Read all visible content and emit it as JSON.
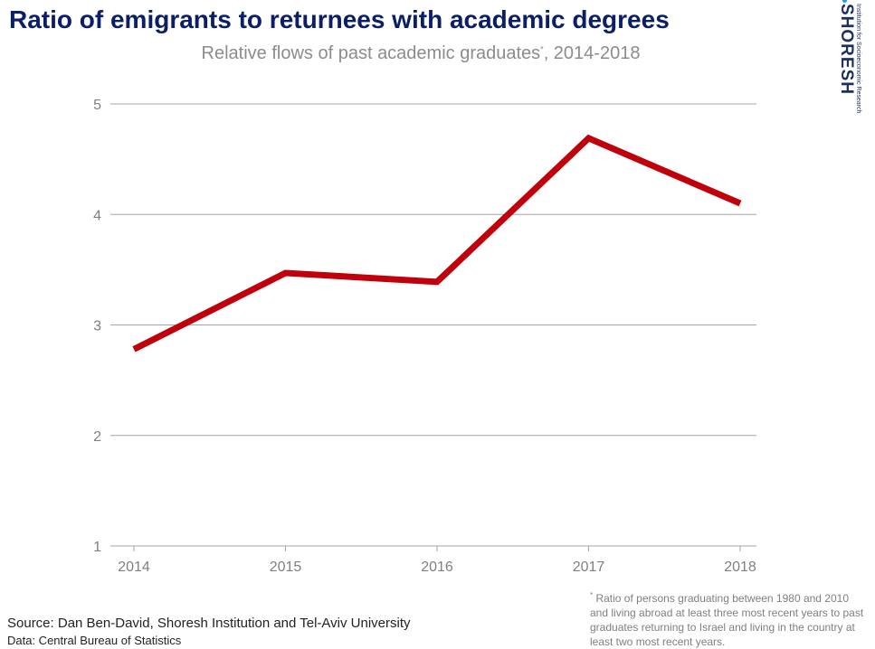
{
  "title": "Ratio of emigrants to returnees with academic degrees",
  "subtitle": "Relative flows of past academic graduates",
  "subtitle_marker": "*",
  "subtitle_period": ", 2014-2018",
  "logo": {
    "wordmark": "SHORESH",
    "tagline": "Institution for Socioeconomic Research"
  },
  "footnote": {
    "marker": "*",
    "text": " Ratio of persons graduating between 1980 and 2010 and living abroad at least three most recent years to past graduates returning to Israel and living in the country at least two most recent years."
  },
  "source_text": "Source: Dan Ben-David, Shoresh Institution and Tel-Aviv University",
  "data_text": "Data:  Central Bureau of Statistics",
  "colors": {
    "title": "#0a1f66",
    "line": "#c0000b",
    "grid": "#a6a6a6",
    "tick_text": "#7f7f7f"
  },
  "chart_data": {
    "type": "line",
    "categories": [
      "2014",
      "2015",
      "2016",
      "2017",
      "2018"
    ],
    "series": [
      {
        "values": [
          2.78,
          3.47,
          3.39,
          4.69,
          4.1
        ]
      }
    ],
    "ylim": [
      1,
      5
    ],
    "yticks": [
      1,
      2,
      3,
      4,
      5
    ],
    "grid": true,
    "legend": "none",
    "xlabel": "",
    "ylabel": ""
  }
}
